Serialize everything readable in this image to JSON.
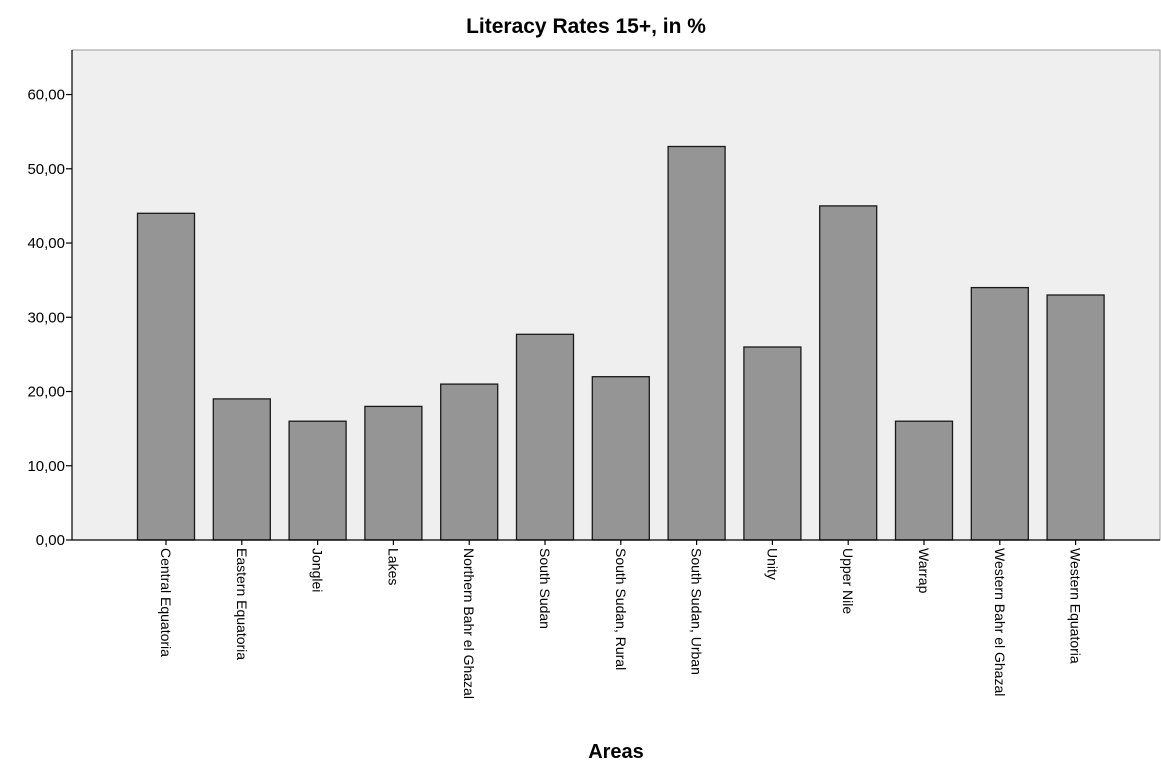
{
  "chart_data": {
    "type": "bar",
    "title": "Literacy Rates 15+, in %",
    "xlabel": "Areas",
    "ylabel": "",
    "ylim": [
      0,
      66
    ],
    "yticks": [
      "0,00",
      "10,00",
      "20,00",
      "30,00",
      "40,00",
      "50,00",
      "60,00"
    ],
    "ytick_values": [
      0,
      10,
      20,
      30,
      40,
      50,
      60
    ],
    "grid": false,
    "categories": [
      "Central Equatoria",
      "Eastern Equatoria",
      "Jonglei",
      "Lakes",
      "Northern Bahr el Ghazal",
      "South Sudan",
      "South Sudan, Rural",
      "South Sudan, Urban",
      "Unity",
      "Upper Nile",
      "Warrap",
      "Western Bahr el Ghazal",
      "Western Equatoria"
    ],
    "values": [
      44,
      19,
      16,
      18,
      21,
      27.7,
      22,
      53,
      26,
      45,
      16,
      34,
      33
    ],
    "colors": {
      "bar_fill": "#959595",
      "bar_stroke": "#1a1a1a",
      "plot_background": "#efefef",
      "page_background": "#ffffff"
    }
  }
}
